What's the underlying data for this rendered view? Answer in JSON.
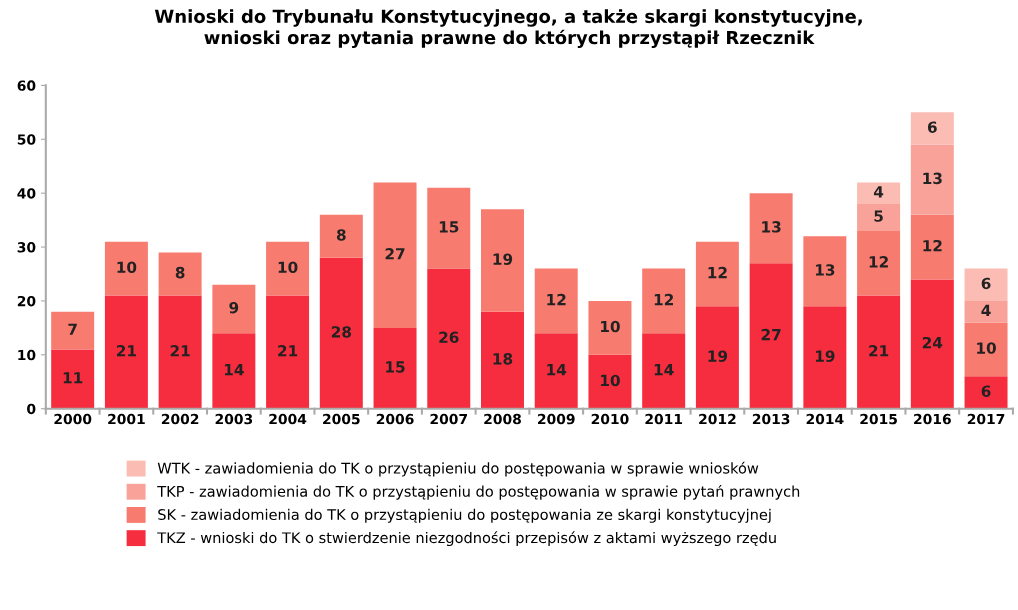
{
  "chart_data": {
    "type": "bar",
    "stacked": true,
    "title": "Wnioski do Trybunału Konstytucyjnego, a także skargi konstytucyjne,\nwnioski oraz pytania prawne do których przystąpił Rzecznik",
    "categories": [
      "2000",
      "2001",
      "2002",
      "2003",
      "2004",
      "2005",
      "2006",
      "2007",
      "2008",
      "2009",
      "2010",
      "2011",
      "2012",
      "2013",
      "2014",
      "2015",
      "2016",
      "2017"
    ],
    "series": [
      {
        "name": "TKZ - wnioski do TK o stwierdzenie niezgodności przepisów z aktami wyższego rzędu",
        "color": "#f52d3e",
        "values": [
          11,
          21,
          21,
          14,
          21,
          28,
          15,
          26,
          18,
          14,
          10,
          14,
          19,
          27,
          19,
          21,
          24,
          6
        ]
      },
      {
        "name": "SK - zawiadomienia do TK o przystąpieniu do postępowania ze skargi konstytucyjnej",
        "color": "#f87b70",
        "values": [
          7,
          10,
          8,
          9,
          10,
          8,
          27,
          15,
          19,
          12,
          10,
          12,
          12,
          13,
          13,
          12,
          12,
          10
        ]
      },
      {
        "name": "TKP - zawiadomienia do TK o przystąpieniu do postępowania w sprawie pytań prawnych",
        "color": "#f9a29a",
        "values": [
          null,
          null,
          null,
          null,
          null,
          null,
          null,
          null,
          null,
          null,
          null,
          null,
          null,
          null,
          null,
          5,
          13,
          4
        ]
      },
      {
        "name": "WTK - zawiadomienia do TK o przystąpieniu do postępowania w sprawie wniosków",
        "color": "#fbbcb4",
        "values": [
          null,
          null,
          null,
          null,
          null,
          null,
          null,
          null,
          null,
          null,
          null,
          null,
          null,
          null,
          null,
          4,
          6,
          6
        ]
      }
    ],
    "ylim": [
      0,
      60
    ],
    "yticks": [
      0,
      10,
      20,
      30,
      40,
      50,
      60
    ],
    "data_labels": true,
    "legend": "bottom",
    "grid": false
  }
}
